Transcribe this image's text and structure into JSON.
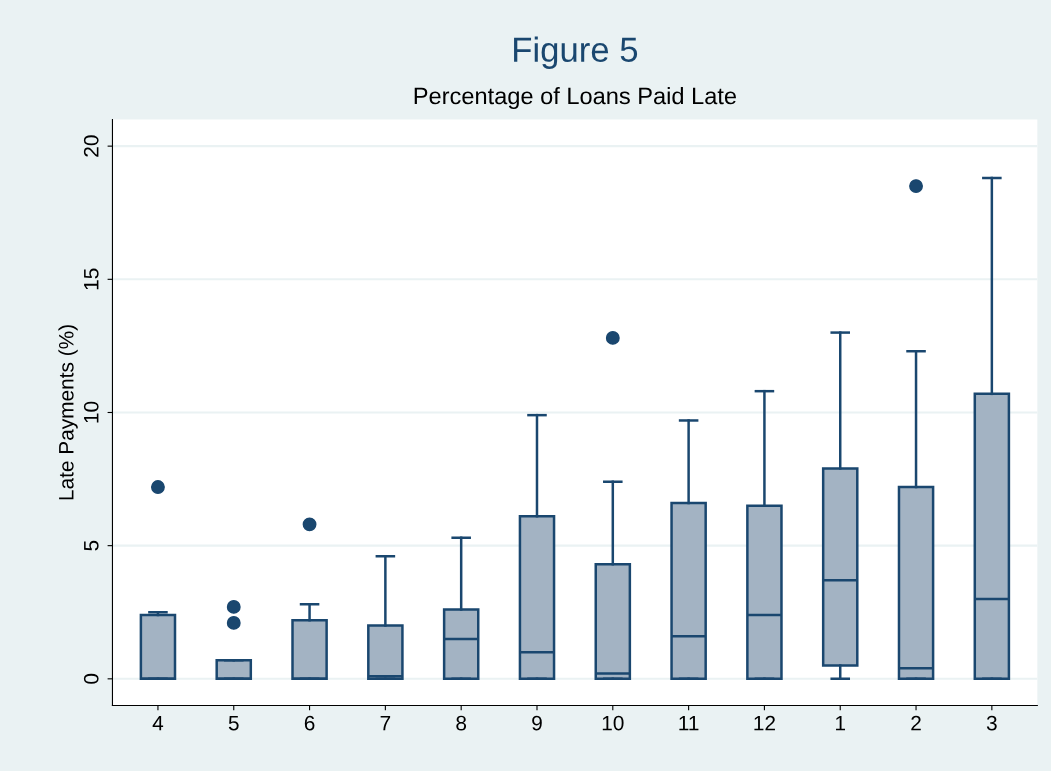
{
  "chart_data": {
    "type": "box",
    "title": "Figure 5",
    "subtitle": "Percentage of Loans Paid Late",
    "ylabel": "Late Payments (%)",
    "categories": [
      "4",
      "5",
      "6",
      "7",
      "8",
      "9",
      "10",
      "11",
      "12",
      "1",
      "2",
      "3"
    ],
    "color": "#a3b3c3",
    "boxes": [
      {
        "low": 0,
        "q1": 0,
        "median": 0,
        "q3": 2.4,
        "high": 2.5,
        "outliers": [
          7.2
        ]
      },
      {
        "low": 0,
        "q1": 0,
        "median": 0,
        "q3": 0.7,
        "high": 0.7,
        "outliers": [
          2.7,
          2.1
        ]
      },
      {
        "low": 0,
        "q1": 0,
        "median": 0,
        "q3": 2.2,
        "high": 2.8,
        "outliers": [
          5.8
        ]
      },
      {
        "low": 0,
        "q1": 0,
        "median": 0.1,
        "q3": 2.0,
        "high": 4.6
      },
      {
        "low": 0,
        "q1": 0,
        "median": 1.5,
        "q3": 2.6,
        "high": 5.3
      },
      {
        "low": 0,
        "q1": 0,
        "median": 1.0,
        "q3": 6.1,
        "high": 9.9
      },
      {
        "low": 0,
        "q1": 0,
        "median": 0.2,
        "q3": 4.3,
        "high": 7.4,
        "outliers": [
          12.8
        ]
      },
      {
        "low": 0,
        "q1": 0,
        "median": 1.6,
        "q3": 6.6,
        "high": 9.7
      },
      {
        "low": 0,
        "q1": 0,
        "median": 2.4,
        "q3": 6.5,
        "high": 10.8
      },
      {
        "low": 0,
        "q1": 0.5,
        "median": 3.7,
        "q3": 7.9,
        "high": 13.0
      },
      {
        "low": 0,
        "q1": 0,
        "median": 0.4,
        "q3": 7.2,
        "high": 12.3,
        "outliers": [
          18.5
        ]
      },
      {
        "low": 0,
        "q1": 0,
        "median": 3.0,
        "q3": 10.7,
        "high": 18.8
      }
    ],
    "ylim": [
      -1,
      21
    ],
    "yticks": [
      0,
      5,
      10,
      15,
      20
    ],
    "grid": "y"
  }
}
